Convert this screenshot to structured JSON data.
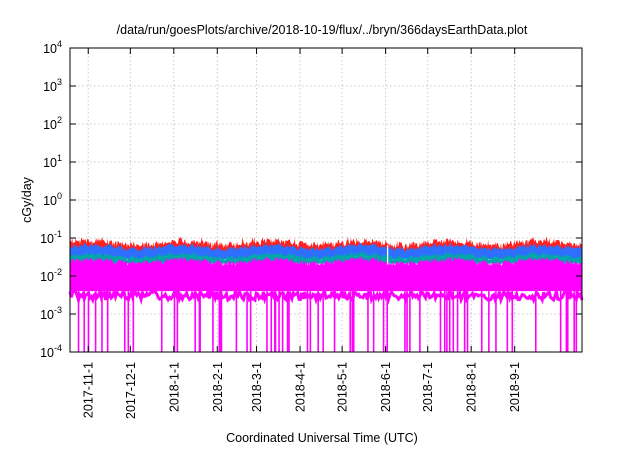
{
  "chart_data": {
    "type": "area",
    "title": "/data/run/goesPlots/archive/2018-10-19/flux/../bryn/366daysEarthData.plot",
    "xlabel": "Coordinated Universal Time (UTC)",
    "ylabel": "cGy/day",
    "y_scale": "log",
    "ylim": [
      0.0001,
      10000
    ],
    "xlim": [
      "2017-10-19",
      "2018-10-19"
    ],
    "grid": true,
    "y_ticks": [
      {
        "mant": "10",
        "exp": "-4"
      },
      {
        "mant": "10",
        "exp": "-3"
      },
      {
        "mant": "10",
        "exp": "-2"
      },
      {
        "mant": "10",
        "exp": "-1"
      },
      {
        "mant": "10",
        "exp": "0"
      },
      {
        "mant": "10",
        "exp": "1"
      },
      {
        "mant": "10",
        "exp": "2"
      },
      {
        "mant": "10",
        "exp": "3"
      },
      {
        "mant": "10",
        "exp": "4"
      }
    ],
    "x_ticks": [
      "2017-11-1",
      "2017-12-1",
      "2018-1-1",
      "2018-2-1",
      "2018-3-1",
      "2018-4-1",
      "2018-5-1",
      "2018-6-1",
      "2018-7-1",
      "2018-8-1",
      "2018-9-1"
    ],
    "series": [
      {
        "color": "#ff2020",
        "typical": 0.075,
        "peak": 0.09
      },
      {
        "color": "#2f6fff",
        "typical": 0.06,
        "low": 0.04
      },
      {
        "color": "#00a8a8",
        "typical": 0.035,
        "low": 0.028
      },
      {
        "color": "#ff00ff",
        "typical": 0.025,
        "floor": 0.004,
        "min": 0.0001
      }
    ],
    "colors": {
      "upper": "#ff2020",
      "middle": "#2f6fff",
      "lower": "#00a8a8",
      "base": "#ff00ff",
      "grid": "#c8c8c8"
    }
  }
}
